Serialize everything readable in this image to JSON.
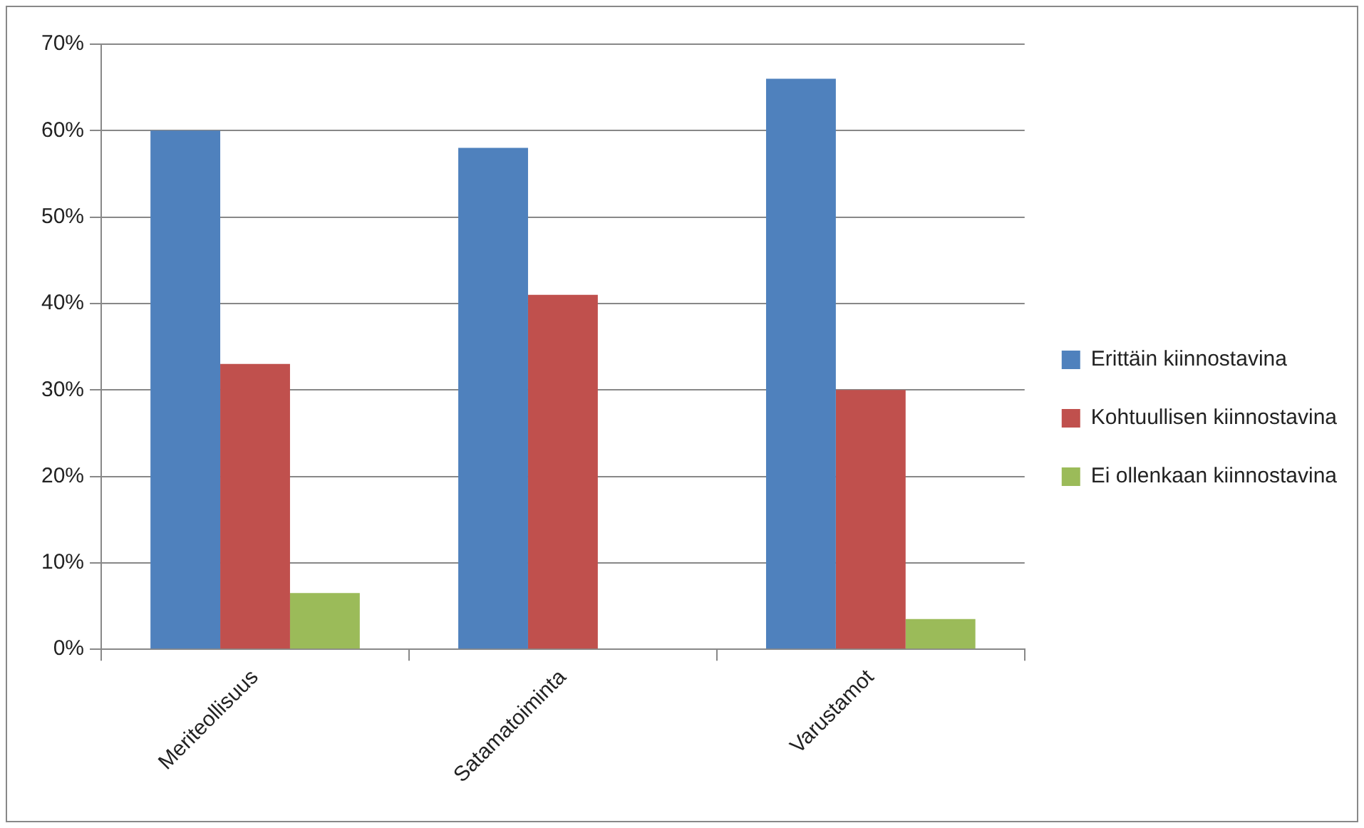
{
  "chart_data": {
    "type": "bar",
    "categories": [
      "Meriteollisuus",
      "Satamatoiminta",
      "Varustamot"
    ],
    "series": [
      {
        "name": "Erittäin kiinnostavina",
        "color": "#4f81bd",
        "values": [
          60,
          58,
          66
        ]
      },
      {
        "name": "Kohtuullisen kiinnostavina",
        "color": "#c0504d",
        "values": [
          33,
          41,
          30
        ]
      },
      {
        "name": "Ei ollenkaan kiinnostavina",
        "color": "#9bbb59",
        "values": [
          6.5,
          0,
          3.5
        ]
      }
    ],
    "ylim": [
      0,
      70
    ],
    "yticks": [
      {
        "value": 0,
        "label": "0%"
      },
      {
        "value": 10,
        "label": "10%"
      },
      {
        "value": 20,
        "label": "20%"
      },
      {
        "value": 30,
        "label": "30%"
      },
      {
        "value": 40,
        "label": "40%"
      },
      {
        "value": 50,
        "label": "50%"
      },
      {
        "value": 60,
        "label": "60%"
      },
      {
        "value": 70,
        "label": "70%"
      }
    ],
    "grid": "y",
    "legend": "right"
  }
}
